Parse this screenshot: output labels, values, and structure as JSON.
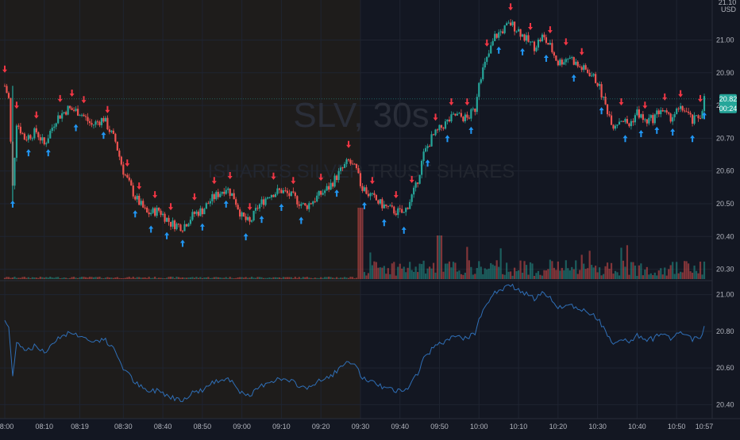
{
  "colors": {
    "background": "#131722",
    "premarket_shade": "#1e1c1b",
    "grid": "#1f2431",
    "up": "#26a69a",
    "down": "#ef5350",
    "up_arrow": "#2196f3",
    "down_arrow": "#f23645",
    "indicator_line": "#2f6fb7",
    "price_badge": "#26a69a",
    "axis_text": "#b2b5be",
    "watermark": "#2a2e39"
  },
  "watermark": {
    "symbol": "SLV, 30s",
    "description": "ISHARES SILVER TRUST SHARES"
  },
  "currency": "USD",
  "last_price": {
    "price": "20.82",
    "countdown": "00:24"
  },
  "top_axis_label": "21.10",
  "chart_data": [
    {
      "type": "candlestick",
      "pane": "price",
      "session_shading": {
        "premarket_start": "08:00",
        "premarket_end": "09:30"
      },
      "y_axis": {
        "ticks": [
          "21.00",
          "20.90",
          "20.80",
          "20.70",
          "20.60",
          "20.50",
          "20.40",
          "20.30"
        ],
        "ylim": [
          20.27,
          21.11
        ]
      },
      "x_axis": {
        "tick_labels": [
          "08:00",
          "08:10",
          "08:19",
          "08:30",
          "08:40",
          "08:50",
          "09:00",
          "09:10",
          "09:20",
          "09:30",
          "09:40",
          "09:50",
          "10:00",
          "10:10",
          "10:20",
          "10:30",
          "10:40",
          "10:50",
          "10:57"
        ],
        "range_minutes": [
          0,
          177
        ]
      },
      "price_path": [
        [
          0,
          20.86
        ],
        [
          1,
          20.82
        ],
        [
          2,
          20.55
        ],
        [
          3,
          20.75
        ],
        [
          5,
          20.7
        ],
        [
          8,
          20.72
        ],
        [
          10,
          20.68
        ],
        [
          13,
          20.76
        ],
        [
          16,
          20.79
        ],
        [
          19,
          20.78
        ],
        [
          22,
          20.74
        ],
        [
          25,
          20.76
        ],
        [
          28,
          20.69
        ],
        [
          30,
          20.6
        ],
        [
          33,
          20.52
        ],
        [
          36,
          20.47
        ],
        [
          39,
          20.48
        ],
        [
          42,
          20.44
        ],
        [
          45,
          20.43
        ],
        [
          48,
          20.47
        ],
        [
          50,
          20.48
        ],
        [
          52,
          20.51
        ],
        [
          54,
          20.53
        ],
        [
          56,
          20.55
        ],
        [
          58,
          20.52
        ],
        [
          60,
          20.46
        ],
        [
          62,
          20.44
        ],
        [
          64,
          20.49
        ],
        [
          67,
          20.53
        ],
        [
          70,
          20.54
        ],
        [
          73,
          20.52
        ],
        [
          76,
          20.49
        ],
        [
          79,
          20.52
        ],
        [
          82,
          20.55
        ],
        [
          85,
          20.6
        ],
        [
          87,
          20.63
        ],
        [
          89,
          20.6
        ],
        [
          90,
          20.56
        ],
        [
          92,
          20.53
        ],
        [
          95,
          20.5
        ],
        [
          98,
          20.48
        ],
        [
          101,
          20.47
        ],
        [
          104,
          20.55
        ],
        [
          106,
          20.65
        ],
        [
          108,
          20.7
        ],
        [
          111,
          20.74
        ],
        [
          114,
          20.77
        ],
        [
          117,
          20.76
        ],
        [
          119,
          20.79
        ],
        [
          120,
          20.88
        ],
        [
          122,
          20.94
        ],
        [
          124,
          21.01
        ],
        [
          126,
          21.03
        ],
        [
          128,
          21.05
        ],
        [
          130,
          21.03
        ],
        [
          132,
          21.0
        ],
        [
          134,
          20.98
        ],
        [
          136,
          21.01
        ],
        [
          138,
          20.98
        ],
        [
          140,
          20.93
        ],
        [
          143,
          20.95
        ],
        [
          145,
          20.92
        ],
        [
          148,
          20.9
        ],
        [
          150,
          20.87
        ],
        [
          152,
          20.8
        ],
        [
          154,
          20.74
        ],
        [
          156,
          20.76
        ],
        [
          158,
          20.74
        ],
        [
          160,
          20.78
        ],
        [
          162,
          20.75
        ],
        [
          164,
          20.76
        ],
        [
          166,
          20.79
        ],
        [
          168,
          20.76
        ],
        [
          170,
          20.78
        ],
        [
          172,
          20.79
        ],
        [
          174,
          20.75
        ],
        [
          176,
          20.77
        ],
        [
          177,
          20.82
        ]
      ],
      "signals": {
        "sell_arrows_min": [
          0,
          3,
          8,
          14,
          17,
          20,
          26,
          31,
          34,
          38,
          42,
          48,
          53,
          57,
          62,
          68,
          73,
          80,
          87,
          93,
          99,
          103,
          109,
          113,
          117,
          122,
          128,
          133,
          138,
          142,
          146,
          156,
          162,
          167,
          171,
          176
        ],
        "buy_arrows_min": [
          2,
          6,
          11,
          18,
          25,
          33,
          37,
          41,
          45,
          50,
          56,
          61,
          65,
          70,
          75,
          84,
          91,
          96,
          101,
          107,
          112,
          118,
          125,
          131,
          137,
          144,
          151,
          157,
          161,
          165,
          169,
          174,
          177
        ]
      },
      "volume": {
        "note": "relative volume bars; session spike near 09:30 and 09:50"
      }
    },
    {
      "type": "line",
      "pane": "indicator",
      "y_axis": {
        "ticks": [
          "21.00",
          "20.80",
          "20.60",
          "20.40"
        ],
        "ylim": [
          20.35,
          21.05
        ]
      },
      "series": [
        {
          "values_source": "price_path"
        }
      ]
    }
  ]
}
